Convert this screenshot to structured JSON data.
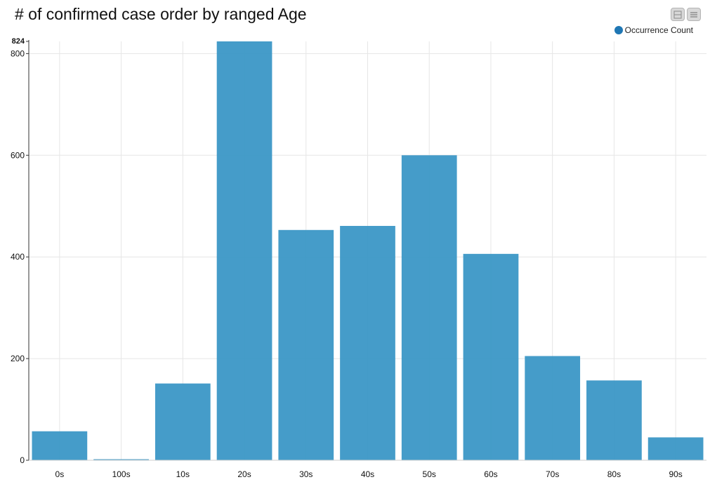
{
  "chart_data": {
    "type": "bar",
    "title": "# of confirmed case order by ranged Age",
    "categories": [
      "0s",
      "100s",
      "10s",
      "20s",
      "30s",
      "40s",
      "50s",
      "60s",
      "70s",
      "80s",
      "90s"
    ],
    "series": [
      {
        "name": "Occurrence Count",
        "values": [
          57,
          2,
          151,
          824,
          453,
          461,
          600,
          406,
          205,
          157,
          45
        ],
        "color": "#3b97c6"
      }
    ],
    "ylim": [
      0,
      824
    ],
    "y_ticks": [
      "0",
      "200",
      "400",
      "600",
      "800"
    ],
    "y_max_label": "824",
    "grid": true,
    "legend_position": "top-right"
  },
  "legend": {
    "swatch_color": "#1f77b4"
  },
  "toolbar": {
    "icons": [
      "collapse-icon",
      "menu-icon"
    ]
  }
}
